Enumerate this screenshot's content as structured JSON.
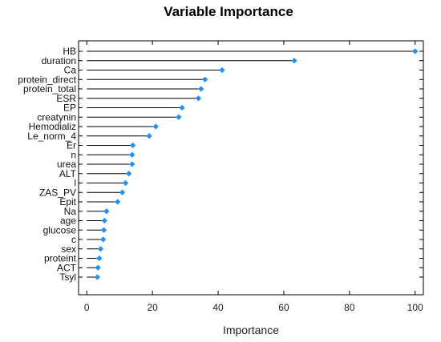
{
  "chart_data": {
    "type": "lollipop",
    "title": "Variable Importance",
    "xlabel": "Importance",
    "ylabel": "",
    "xlim": [
      -2.5,
      102.5
    ],
    "xticks": [
      0,
      20,
      40,
      60,
      80,
      100
    ],
    "grid": false,
    "legend": "none",
    "colors": {
      "marker": "#1E90FF",
      "line": "#000000",
      "frame": "#000000"
    },
    "categories": [
      "HB",
      "duration",
      "Ca",
      "protein_direct",
      "protein_total",
      "ESR",
      "EP",
      "creatynin",
      "Hemodializ",
      "Le_norm_4",
      "Er",
      "n",
      "urea",
      "ALT",
      "l",
      "ZAS_PV",
      "Epit",
      "Na",
      "age",
      "glucose",
      "c",
      "sex",
      "proteint",
      "ACT",
      "Tsyl"
    ],
    "values": [
      100,
      63.2,
      41.2,
      36,
      34.8,
      34,
      29,
      28,
      21,
      19,
      14,
      13.8,
      13.8,
      12.8,
      11.8,
      10.8,
      9.4,
      6,
      5.4,
      5.2,
      5,
      4.2,
      3.8,
      3.4,
      3.2
    ]
  }
}
